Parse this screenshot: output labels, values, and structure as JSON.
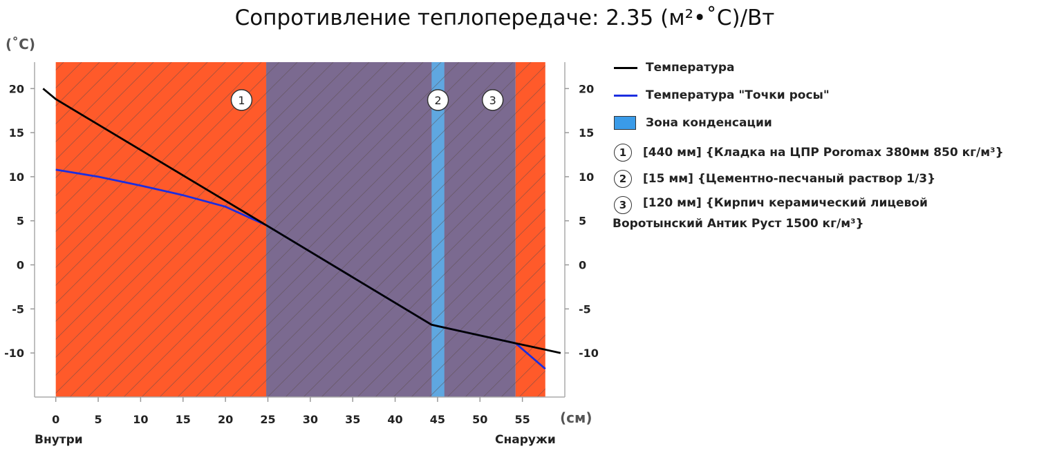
{
  "chart_data": {
    "type": "line",
    "title": "Сопротивление теплопередаче: 2.35 (м²•˚С)/Вт",
    "y_unit_label": "(˚C)",
    "x_unit_label": "(см)",
    "xlabel_left": "Внутри",
    "xlabel_right": "Снаружи",
    "xlim": [
      -2.5,
      60
    ],
    "ylim": [
      -15,
      23
    ],
    "x_ticks": [
      0,
      5,
      10,
      15,
      20,
      25,
      30,
      35,
      40,
      45,
      50,
      55
    ],
    "y_ticks": [
      20,
      15,
      10,
      5,
      0,
      -5,
      -10
    ],
    "grid": false,
    "legend_position": "right",
    "layers": [
      {
        "number": "1",
        "x_start": 0,
        "x_end": 24.8,
        "color": "#ff5a2a",
        "legend": "[440 мм] {Кладка на ЦПР Poromax 380мм  850 кг/м³}"
      },
      {
        "number": "2",
        "x_start": 44.3,
        "x_end": 45.8,
        "color": "#5fa7e0",
        "legend": "[15 мм] {Цементно-песчаный раствор 1/3}"
      },
      {
        "number": "3",
        "x_start": 54.2,
        "x_end": 57.7,
        "color": "#ff5a2a",
        "legend": "[120 мм] {Кирпич керамический лицевой Воротынский Антик Руст 1500 кг/м³}"
      }
    ],
    "condensation_zone": {
      "x_start": 24.8,
      "x_end": 54.2,
      "color": "#7b6a90"
    },
    "series": [
      {
        "name": "Температура",
        "color": "#000000",
        "points": [
          [
            -1.5,
            20
          ],
          [
            0,
            18.8
          ],
          [
            24.8,
            4.5
          ],
          [
            44.3,
            -6.8
          ],
          [
            54.2,
            -8.9
          ],
          [
            59.5,
            -10
          ]
        ]
      },
      {
        "name": "Температура \"Точки росы\"",
        "color": "#1c2ee0",
        "points": [
          [
            0,
            10.8
          ],
          [
            5,
            10
          ],
          [
            10,
            9
          ],
          [
            15,
            7.9
          ],
          [
            20,
            6.6
          ],
          [
            24.8,
            4.5
          ],
          [
            44.3,
            -6.8
          ],
          [
            54.2,
            -8.9
          ],
          [
            57.7,
            -11.8
          ]
        ]
      }
    ],
    "legend_zone_label": "Зона конденсации",
    "legend_zone_color": "#3a9be8"
  }
}
